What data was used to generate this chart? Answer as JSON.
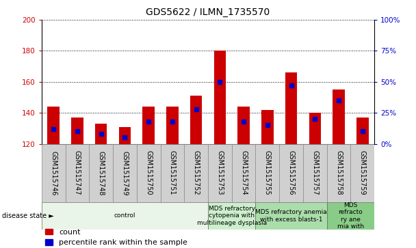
{
  "title": "GDS5622 / ILMN_1735570",
  "samples": [
    "GSM1515746",
    "GSM1515747",
    "GSM1515748",
    "GSM1515749",
    "GSM1515750",
    "GSM1515751",
    "GSM1515752",
    "GSM1515753",
    "GSM1515754",
    "GSM1515755",
    "GSM1515756",
    "GSM1515757",
    "GSM1515758",
    "GSM1515759"
  ],
  "count_values": [
    144,
    137,
    133,
    131,
    144,
    144,
    151,
    180,
    144,
    142,
    166,
    140,
    155,
    137
  ],
  "percentile_values": [
    12,
    10,
    8,
    5,
    18,
    18,
    28,
    50,
    18,
    15,
    47,
    20,
    35,
    10
  ],
  "ylim_left": [
    120,
    200
  ],
  "ylim_right": [
    0,
    100
  ],
  "yticks_left": [
    120,
    140,
    160,
    180,
    200
  ],
  "yticks_right": [
    0,
    25,
    50,
    75,
    100
  ],
  "bar_color": "#cc0000",
  "percentile_color": "#0000cc",
  "disease_groups": [
    {
      "label": "control",
      "start": 0,
      "end": 7,
      "color": "#e8f5e8"
    },
    {
      "label": "MDS refractory\ncytopenia with\nmultilineage dysplasia",
      "start": 7,
      "end": 9,
      "color": "#cceecc"
    },
    {
      "label": "MDS refractory anemia\nwith excess blasts-1",
      "start": 9,
      "end": 12,
      "color": "#aaddaa"
    },
    {
      "label": "MDS\nrefracto\nry ane\nmia with",
      "start": 12,
      "end": 14,
      "color": "#88cc88"
    }
  ],
  "title_fontsize": 10,
  "tick_fontsize": 7.5,
  "disease_fontsize": 6.5,
  "legend_fontsize": 8,
  "left_tick_color": "#cc0000",
  "right_tick_color": "#0000cc",
  "sample_bg_color": "#d0d0d0",
  "bar_width": 0.5
}
